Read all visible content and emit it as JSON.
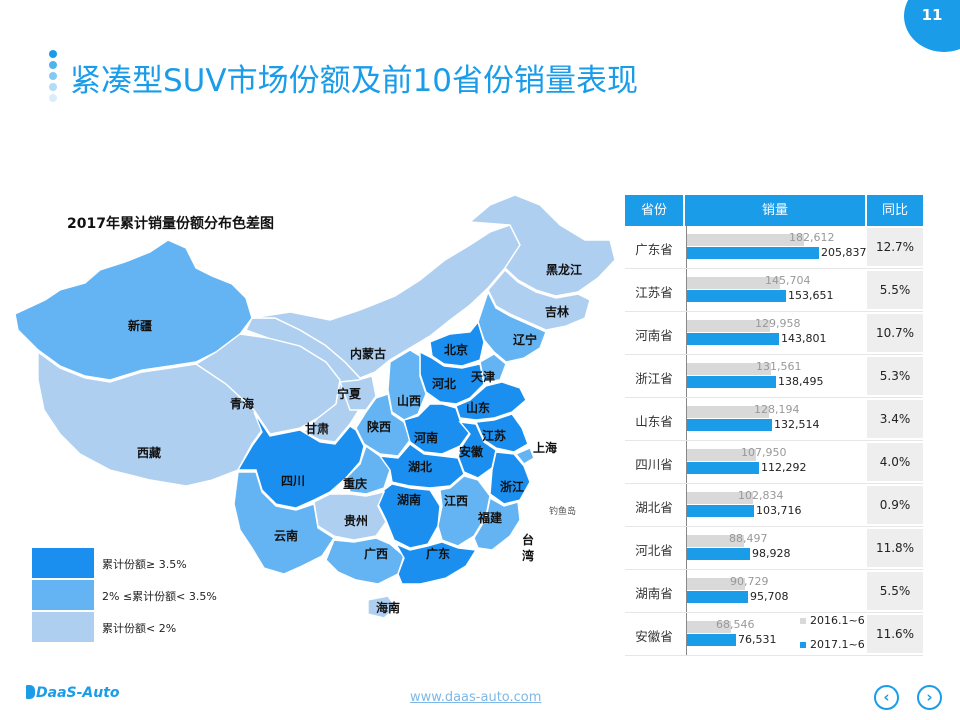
{
  "page_number": "11",
  "slide_title": "紧凑型SUV市场份额及前10省份销量表现",
  "map": {
    "title": "2017年累计销量份额分布色差图",
    "legend": [
      {
        "label": "累计份额≥ 3.5%",
        "color": "#1a8ff0"
      },
      {
        "label": "2% ≤累计份额< 3.5%",
        "color": "#64b4f4"
      },
      {
        "label": "累计份额< 2%",
        "color": "#aecff0"
      }
    ],
    "provinces": [
      {
        "name": "新疆",
        "tier": 2
      },
      {
        "name": "西藏",
        "tier": 3
      },
      {
        "name": "青海",
        "tier": 3
      },
      {
        "name": "甘肃",
        "tier": 3
      },
      {
        "name": "内蒙古",
        "tier": 3
      },
      {
        "name": "宁夏",
        "tier": 3
      },
      {
        "name": "黑龙江",
        "tier": 3
      },
      {
        "name": "吉林",
        "tier": 3
      },
      {
        "name": "辽宁",
        "tier": 2
      },
      {
        "name": "北京",
        "tier": 1
      },
      {
        "name": "天津",
        "tier": 2
      },
      {
        "name": "河北",
        "tier": 1
      },
      {
        "name": "山西",
        "tier": 2
      },
      {
        "name": "陕西",
        "tier": 2
      },
      {
        "name": "山东",
        "tier": 1
      },
      {
        "name": "河南",
        "tier": 1
      },
      {
        "name": "江苏",
        "tier": 1
      },
      {
        "name": "安徽",
        "tier": 1
      },
      {
        "name": "上海",
        "tier": 2
      },
      {
        "name": "四川",
        "tier": 1
      },
      {
        "name": "重庆",
        "tier": 2
      },
      {
        "name": "湖北",
        "tier": 1
      },
      {
        "name": "浙江",
        "tier": 1
      },
      {
        "name": "湖南",
        "tier": 1
      },
      {
        "name": "江西",
        "tier": 2
      },
      {
        "name": "贵州",
        "tier": 3
      },
      {
        "name": "福建",
        "tier": 2
      },
      {
        "name": "云南",
        "tier": 2
      },
      {
        "name": "广西",
        "tier": 2
      },
      {
        "name": "广东",
        "tier": 1
      },
      {
        "name": "台湾",
        "tier": 0
      },
      {
        "name": "海南",
        "tier": 3
      }
    ],
    "island_label": "钓鱼岛"
  },
  "chart_data": {
    "type": "bar",
    "orientation": "horizontal",
    "columns": [
      "省份",
      "销量",
      "同比"
    ],
    "categories": [
      "广东省",
      "江苏省",
      "河南省",
      "浙江省",
      "山东省",
      "四川省",
      "湖北省",
      "河北省",
      "湖南省",
      "安徽省"
    ],
    "series": [
      {
        "name": "2016.1~6",
        "color": "#d9d9d9",
        "values": [
          182612,
          145704,
          129958,
          131561,
          128194,
          107950,
          102834,
          88497,
          90729,
          68546
        ],
        "labels": [
          "182,612",
          "145,704",
          "129,958",
          "131,561",
          "128,194",
          "107,950",
          "102,834",
          "88,497",
          "90,729",
          "68,546"
        ]
      },
      {
        "name": "2017.1~6",
        "color": "#1a9ce9",
        "values": [
          205837,
          153651,
          143801,
          138495,
          132514,
          112292,
          103716,
          98928,
          95708,
          76531
        ],
        "labels": [
          "205,837",
          "153,651",
          "143,801",
          "138,495",
          "132,514",
          "112,292",
          "103,716",
          "98,928",
          "95,708",
          "76,531"
        ]
      }
    ],
    "yoy": [
      "12.7%",
      "5.5%",
      "10.7%",
      "5.3%",
      "3.4%",
      "4.0%",
      "0.9%",
      "11.8%",
      "5.5%",
      "11.6%"
    ],
    "xlim": [
      0,
      205837
    ]
  },
  "footer": {
    "logo": "DaaS-Auto",
    "url": "www.daas-auto.com",
    "prev_icon": "chevron-left-icon",
    "next_icon": "chevron-right-icon"
  }
}
